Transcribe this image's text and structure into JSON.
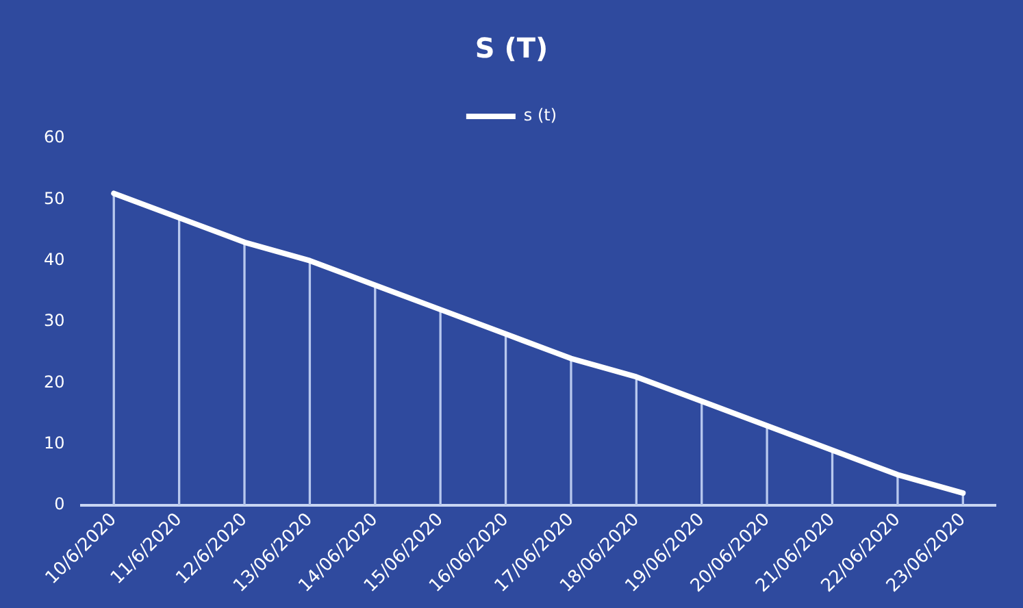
{
  "chart_data": {
    "type": "line",
    "title": "S (T)",
    "categories": [
      "10/6/2020",
      "11/6/2020",
      "12/6/2020",
      "13/06/2020",
      "14/06/2020",
      "15/06/2020",
      "16/06/2020",
      "17/06/2020",
      "18/06/2020",
      "19/06/2020",
      "20/06/2020",
      "21/06/2020",
      "22/06/2020",
      "23/06/2020"
    ],
    "series": [
      {
        "name": "s (t)",
        "color": "#ffffff",
        "values": [
          51,
          47,
          43,
          40,
          36,
          32,
          28,
          24,
          21,
          17,
          13,
          9,
          5,
          2
        ]
      },
      {
        "type": "bar",
        "color": "#b8c8ee",
        "values": [
          51,
          47,
          43,
          40,
          36,
          32,
          28,
          24,
          21,
          17,
          13,
          9,
          5,
          2
        ]
      }
    ],
    "ylim": [
      0,
      60
    ],
    "yticks": [
      0,
      10,
      20,
      30,
      40,
      50,
      60
    ],
    "grid": false,
    "legend": "top",
    "marker": "none",
    "line_style": "solid"
  }
}
